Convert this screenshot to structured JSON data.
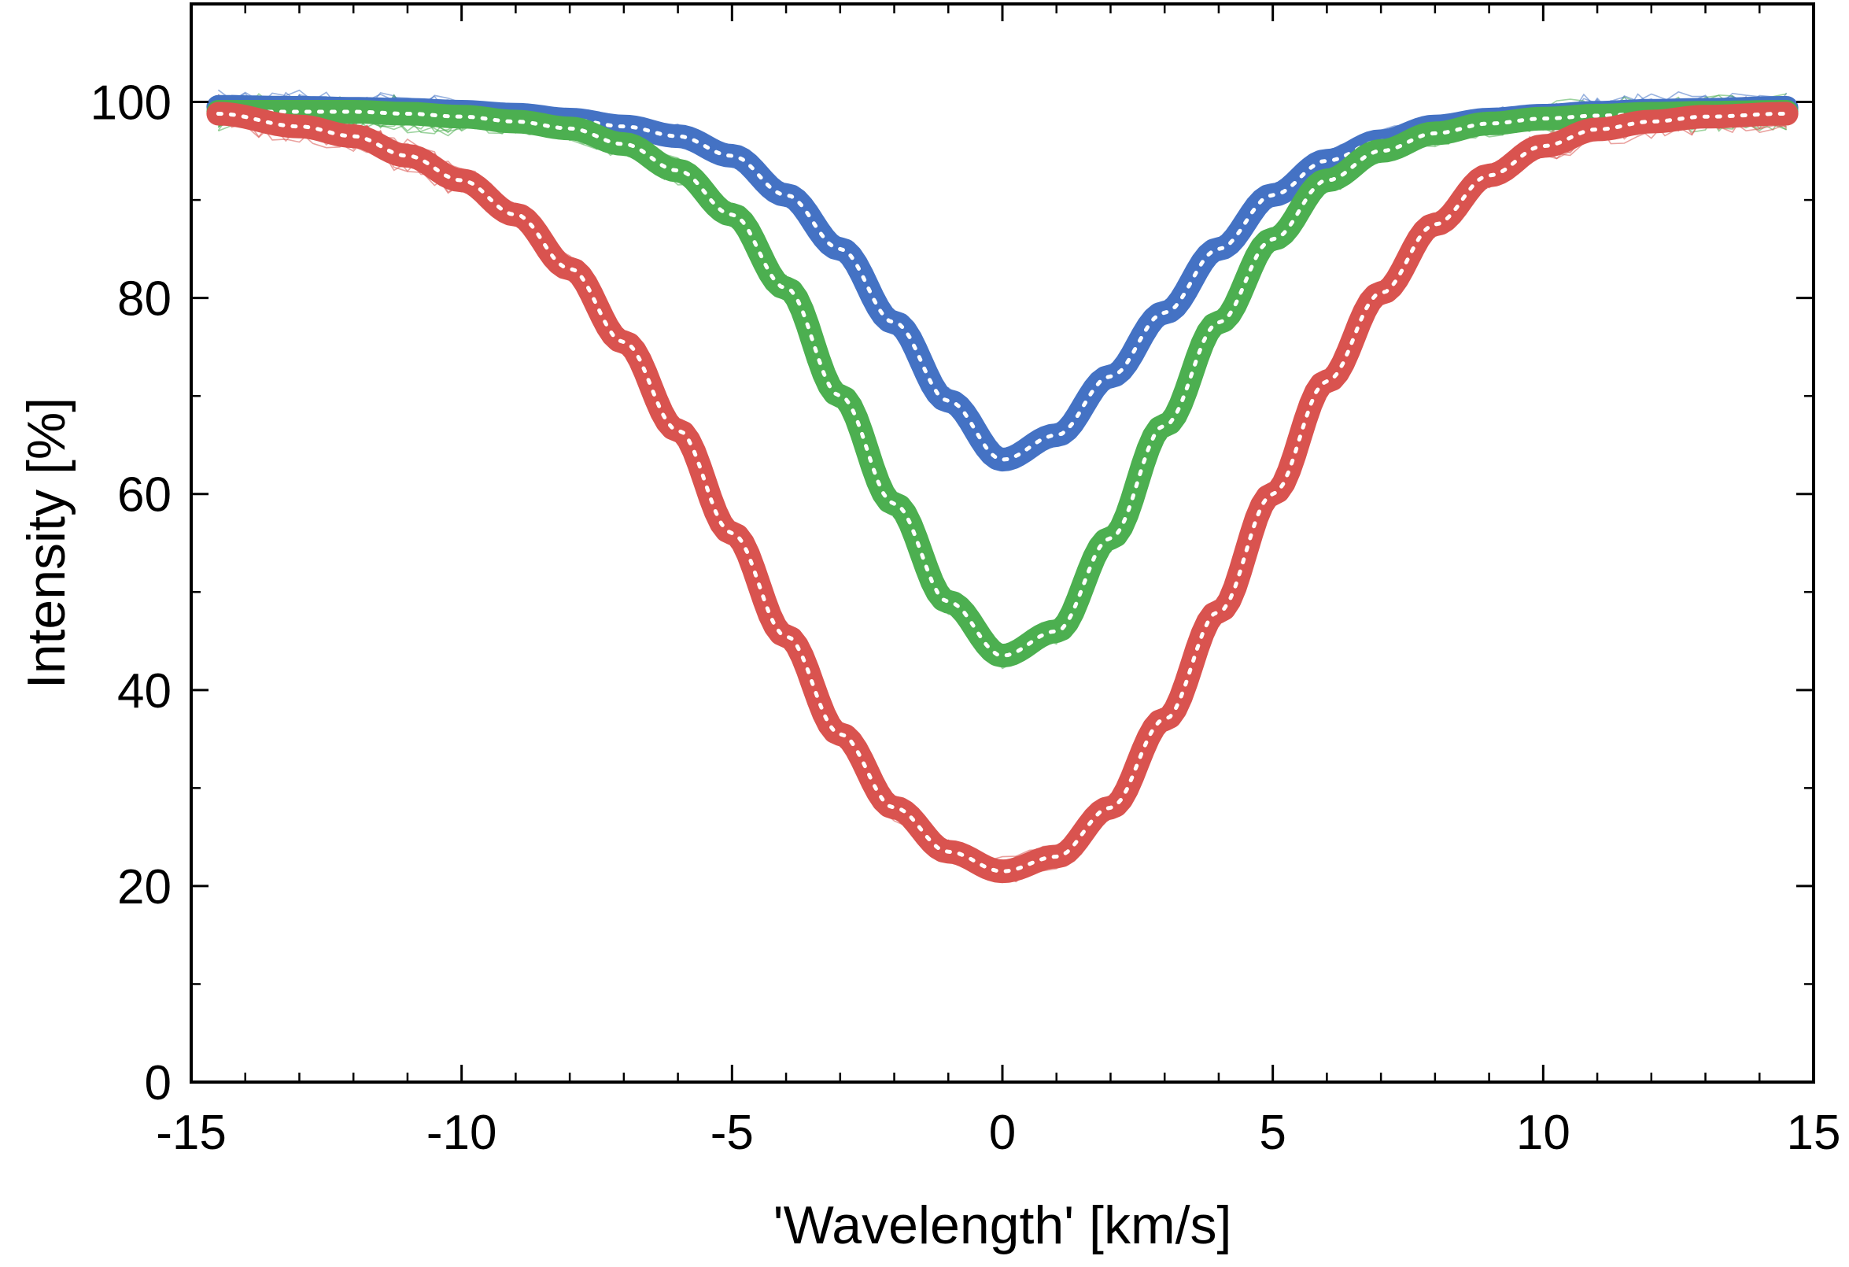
{
  "chart_data": {
    "type": "line",
    "title": "",
    "xlabel": "'Wavelength' [km/s]",
    "ylabel": "Intensity [%]",
    "xlim": [
      -15,
      15
    ],
    "ylim": [
      0,
      110
    ],
    "x_ticks": [
      -15,
      -10,
      -5,
      0,
      5,
      10,
      15
    ],
    "y_ticks": [
      0,
      20,
      40,
      60,
      80,
      100
    ],
    "x_tick_labels": [
      "-15",
      "-10",
      "-5",
      "0",
      "5",
      "10",
      "15"
    ],
    "y_tick_labels": [
      "0",
      "20",
      "40",
      "60",
      "80",
      "100"
    ],
    "grid": false,
    "legend": "none",
    "x": [
      -14.5,
      -13,
      -12,
      -11,
      -10,
      -9,
      -8,
      -7,
      -6,
      -5,
      -4,
      -3,
      -2,
      -1,
      0,
      1,
      2,
      3,
      4,
      5,
      6,
      7,
      8,
      9,
      10,
      11,
      12,
      13,
      14.5
    ],
    "series": [
      {
        "name": "blue",
        "color": "#4472c4",
        "values": [
          99.5,
          99.4,
          99.3,
          99.2,
          99.0,
          98.7,
          98.2,
          97.5,
          96.5,
          94.5,
          90.5,
          85.0,
          77.5,
          69.5,
          63.5,
          66.0,
          72.0,
          78.5,
          85.0,
          90.5,
          94.0,
          96.0,
          97.5,
          98.2,
          98.6,
          98.9,
          99.1,
          99.2,
          99.4
        ]
      },
      {
        "name": "green",
        "color": "#4caf50",
        "values": [
          99.0,
          99.0,
          99.0,
          98.8,
          98.5,
          98.0,
          97.3,
          95.7,
          93.0,
          88.5,
          81.0,
          70.0,
          59.0,
          49.0,
          43.5,
          46.0,
          55.5,
          67.0,
          77.5,
          86.0,
          92.0,
          95.0,
          96.8,
          97.8,
          98.3,
          98.6,
          98.8,
          98.9,
          99.0
        ]
      },
      {
        "name": "red",
        "color": "#d9534f",
        "values": [
          98.8,
          97.5,
          96.5,
          94.5,
          92.0,
          88.5,
          83.0,
          75.5,
          66.5,
          56.0,
          45.5,
          35.5,
          28.0,
          23.5,
          21.5,
          23.0,
          28.0,
          37.0,
          48.0,
          60.0,
          71.5,
          80.5,
          87.5,
          92.5,
          95.5,
          97.2,
          98.0,
          98.5,
          98.8
        ]
      }
    ]
  }
}
